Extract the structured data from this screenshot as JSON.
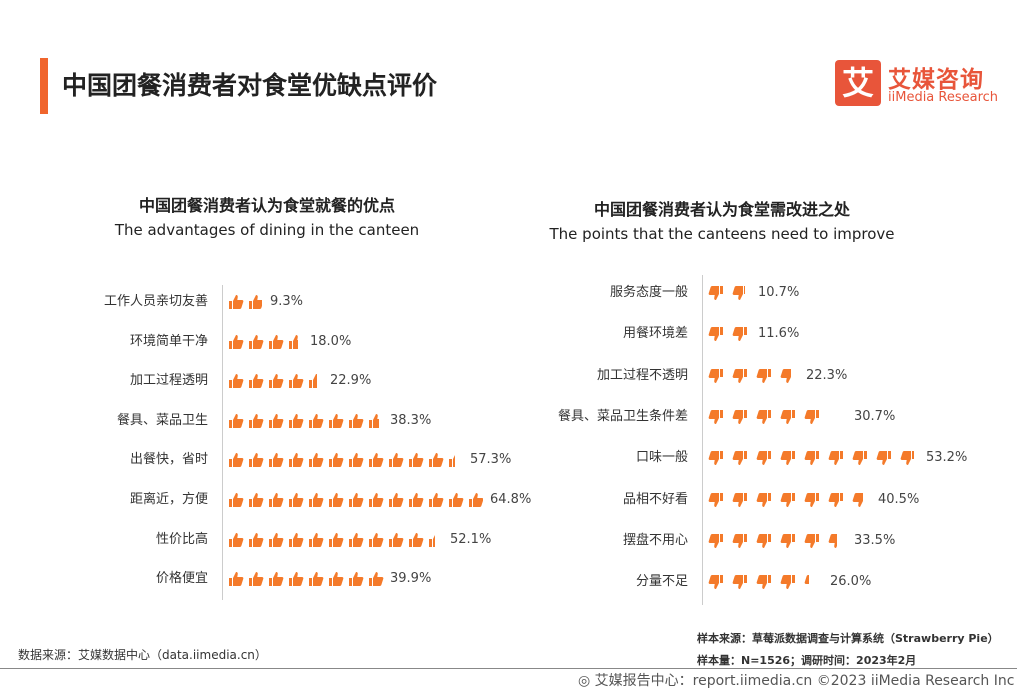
{
  "header": {
    "title": "中国团餐消费者对食堂优缺点评价",
    "logo_cn": "艾媒咨询",
    "logo_en": "iiMedia Research",
    "logo_mark": "艾"
  },
  "colors": {
    "accent": "#f0652d",
    "icon": "#f47a2a"
  },
  "chart_data": [
    {
      "type": "pictogram-bar",
      "icon": "thumbs-up-icon",
      "title": "中国团餐消费者认为食堂就餐的优点",
      "subtitle": "The advantages of dining in the canteen",
      "categories": [
        "工作人员亲切友善",
        "环境简单干净",
        "加工过程透明",
        "餐具、菜品卫生",
        "出餐快，省时",
        "距离近，方便",
        "性价比高",
        "价格便宜"
      ],
      "values": [
        9.3,
        18.0,
        22.9,
        38.3,
        57.3,
        64.8,
        52.1,
        39.9
      ],
      "labels": [
        "9.3%",
        "18.0%",
        "22.9%",
        "38.3%",
        "57.3%",
        "64.8%",
        "52.1%",
        "39.9%"
      ]
    },
    {
      "type": "pictogram-bar",
      "icon": "thumbs-down-icon",
      "title": "中国团餐消费者认为食堂需改进之处",
      "subtitle": "The points that the canteens need to improve",
      "categories": [
        "服务态度一般",
        "用餐环境差",
        "加工过程不透明",
        "餐具、菜品卫生条件差",
        "口味一般",
        "品相不好看",
        "摆盘不用心",
        "分量不足"
      ],
      "values": [
        10.7,
        11.6,
        22.3,
        30.7,
        53.2,
        40.5,
        33.5,
        26.0
      ],
      "labels": [
        "10.7%",
        "11.6%",
        "22.3%",
        "30.7%",
        "53.2%",
        "40.5%",
        "33.5%",
        "26.0%"
      ]
    }
  ],
  "footer": {
    "source_left": "数据来源：艾媒数据中心（data.iimedia.cn）",
    "sample_source": "样本来源：草莓派数据调查与计算系统（Strawberry Pie）",
    "sample_size": "样本量：N=1526；调研时间：2023年2月",
    "report": "艾媒报告中心：report.iimedia.cn  ©2023  iiMedia Research  Inc"
  }
}
